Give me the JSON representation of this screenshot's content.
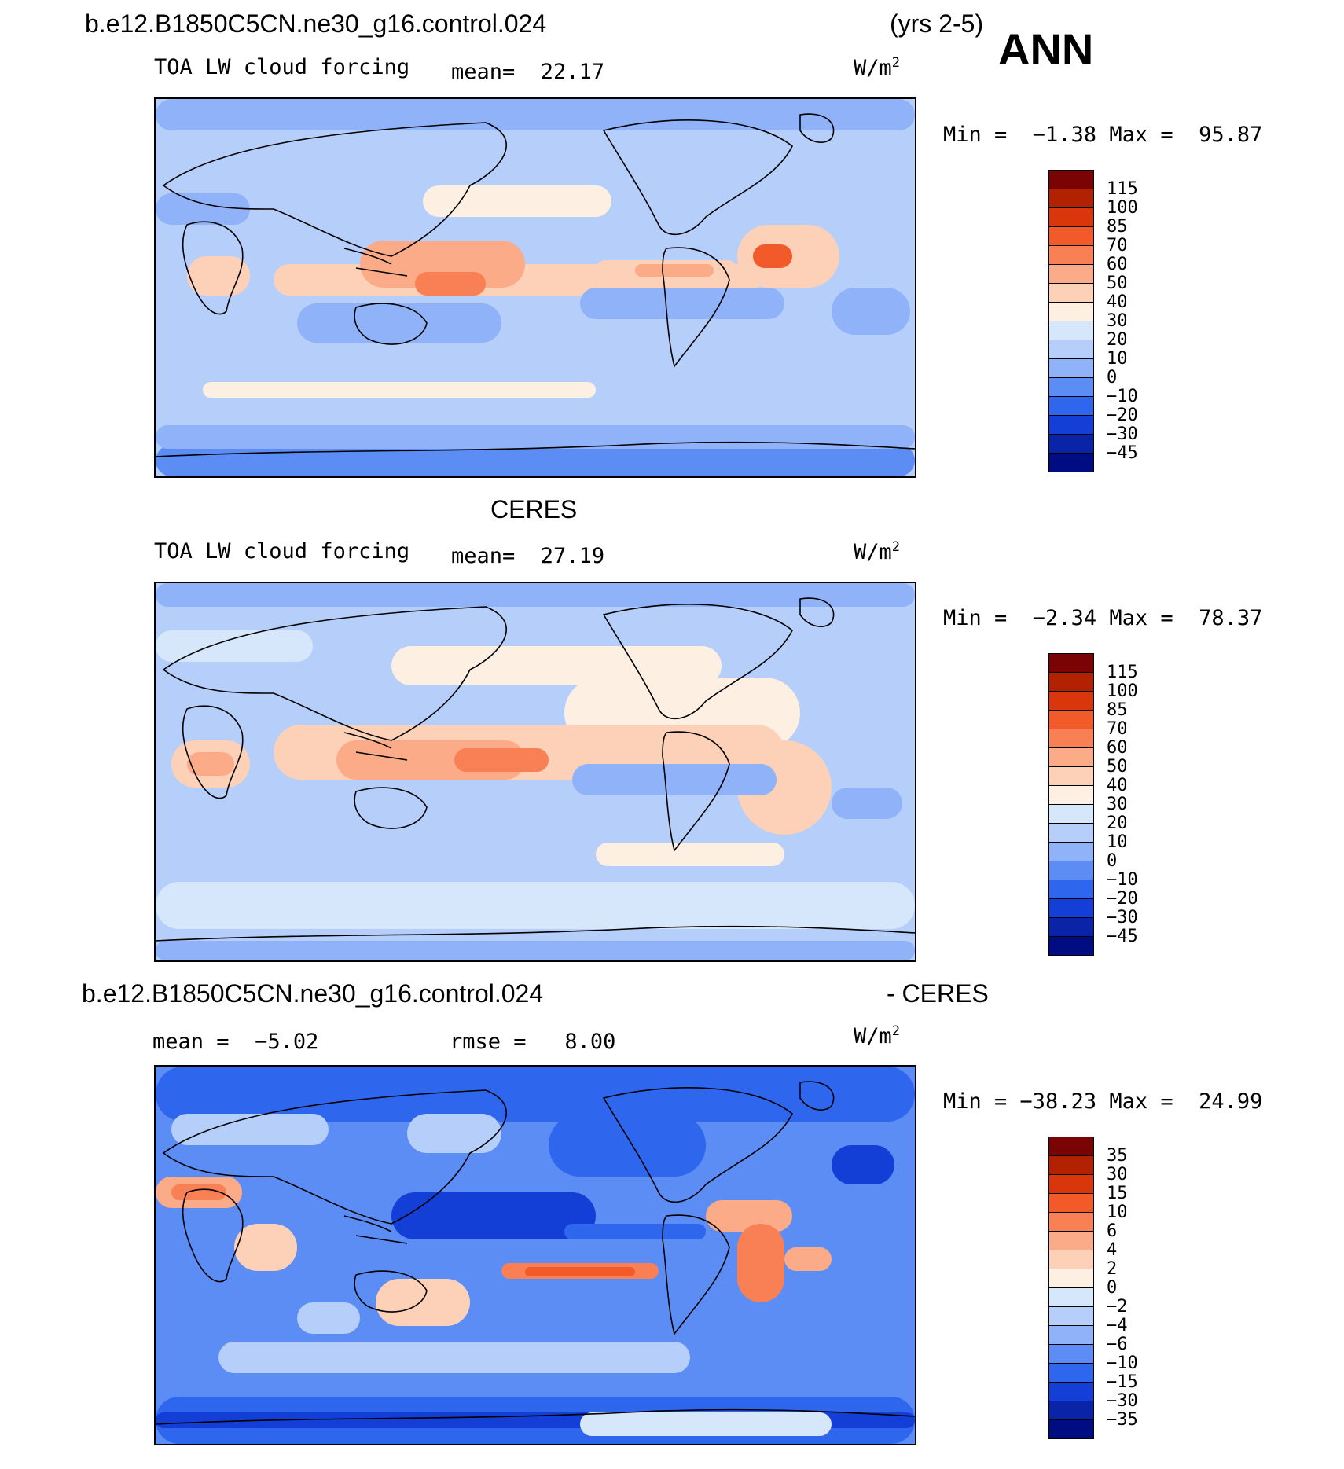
{
  "header": {
    "case_name": "b.e12.B1850C5CN.ne30_g16.control.024",
    "years": "(yrs 2-5)",
    "season": "ANN"
  },
  "panel_model": {
    "variable": "TOA LW cloud forcing",
    "mean_label": "mean=",
    "mean_value": "22.17",
    "units": "W/m",
    "units_exp": "2",
    "min_label": "Min =",
    "min_value": "−1.38",
    "max_label": "Max =",
    "max_value": "95.87",
    "levels": [
      "115",
      "100",
      "85",
      "70",
      "60",
      "50",
      "40",
      "30",
      "20",
      "10",
      "0",
      "−10",
      "−20",
      "−30",
      "−45"
    ]
  },
  "panel_obs": {
    "title": "CERES",
    "variable": "TOA LW cloud forcing",
    "mean_label": "mean=",
    "mean_value": "27.19",
    "units": "W/m",
    "units_exp": "2",
    "min_label": "Min =",
    "min_value": "−2.34",
    "max_label": "Max =",
    "max_value": "78.37",
    "levels": [
      "115",
      "100",
      "85",
      "70",
      "60",
      "50",
      "40",
      "30",
      "20",
      "10",
      "0",
      "−10",
      "−20",
      "−30",
      "−45"
    ]
  },
  "panel_diff": {
    "title_left": "b.e12.B1850C5CN.ne30_g16.control.024",
    "title_right": "- CERES",
    "mean_label": "mean =",
    "mean_value": "−5.02",
    "rmse_label": "rmse =",
    "rmse_value": "8.00",
    "units": "W/m",
    "units_exp": "2",
    "min_label": "Min =",
    "min_value": "−38.23",
    "max_label": "Max =",
    "max_value": "24.99",
    "levels": [
      "35",
      "30",
      "15",
      "10",
      "6",
      "4",
      "2",
      "0",
      "−2",
      "−4",
      "−6",
      "−10",
      "−15",
      "−30",
      "−35"
    ]
  },
  "colors": {
    "palette": [
      "#7a0403",
      "#b32200",
      "#d9360c",
      "#f25a2a",
      "#f98055",
      "#fbab87",
      "#fdd1b8",
      "#fdefe2",
      "#d6e7fb",
      "#b6cefa",
      "#8fb2f8",
      "#5b8df5",
      "#2f66ee",
      "#143fd6",
      "#0a24a8",
      "#000d82"
    ],
    "coastline": "#000000"
  }
}
